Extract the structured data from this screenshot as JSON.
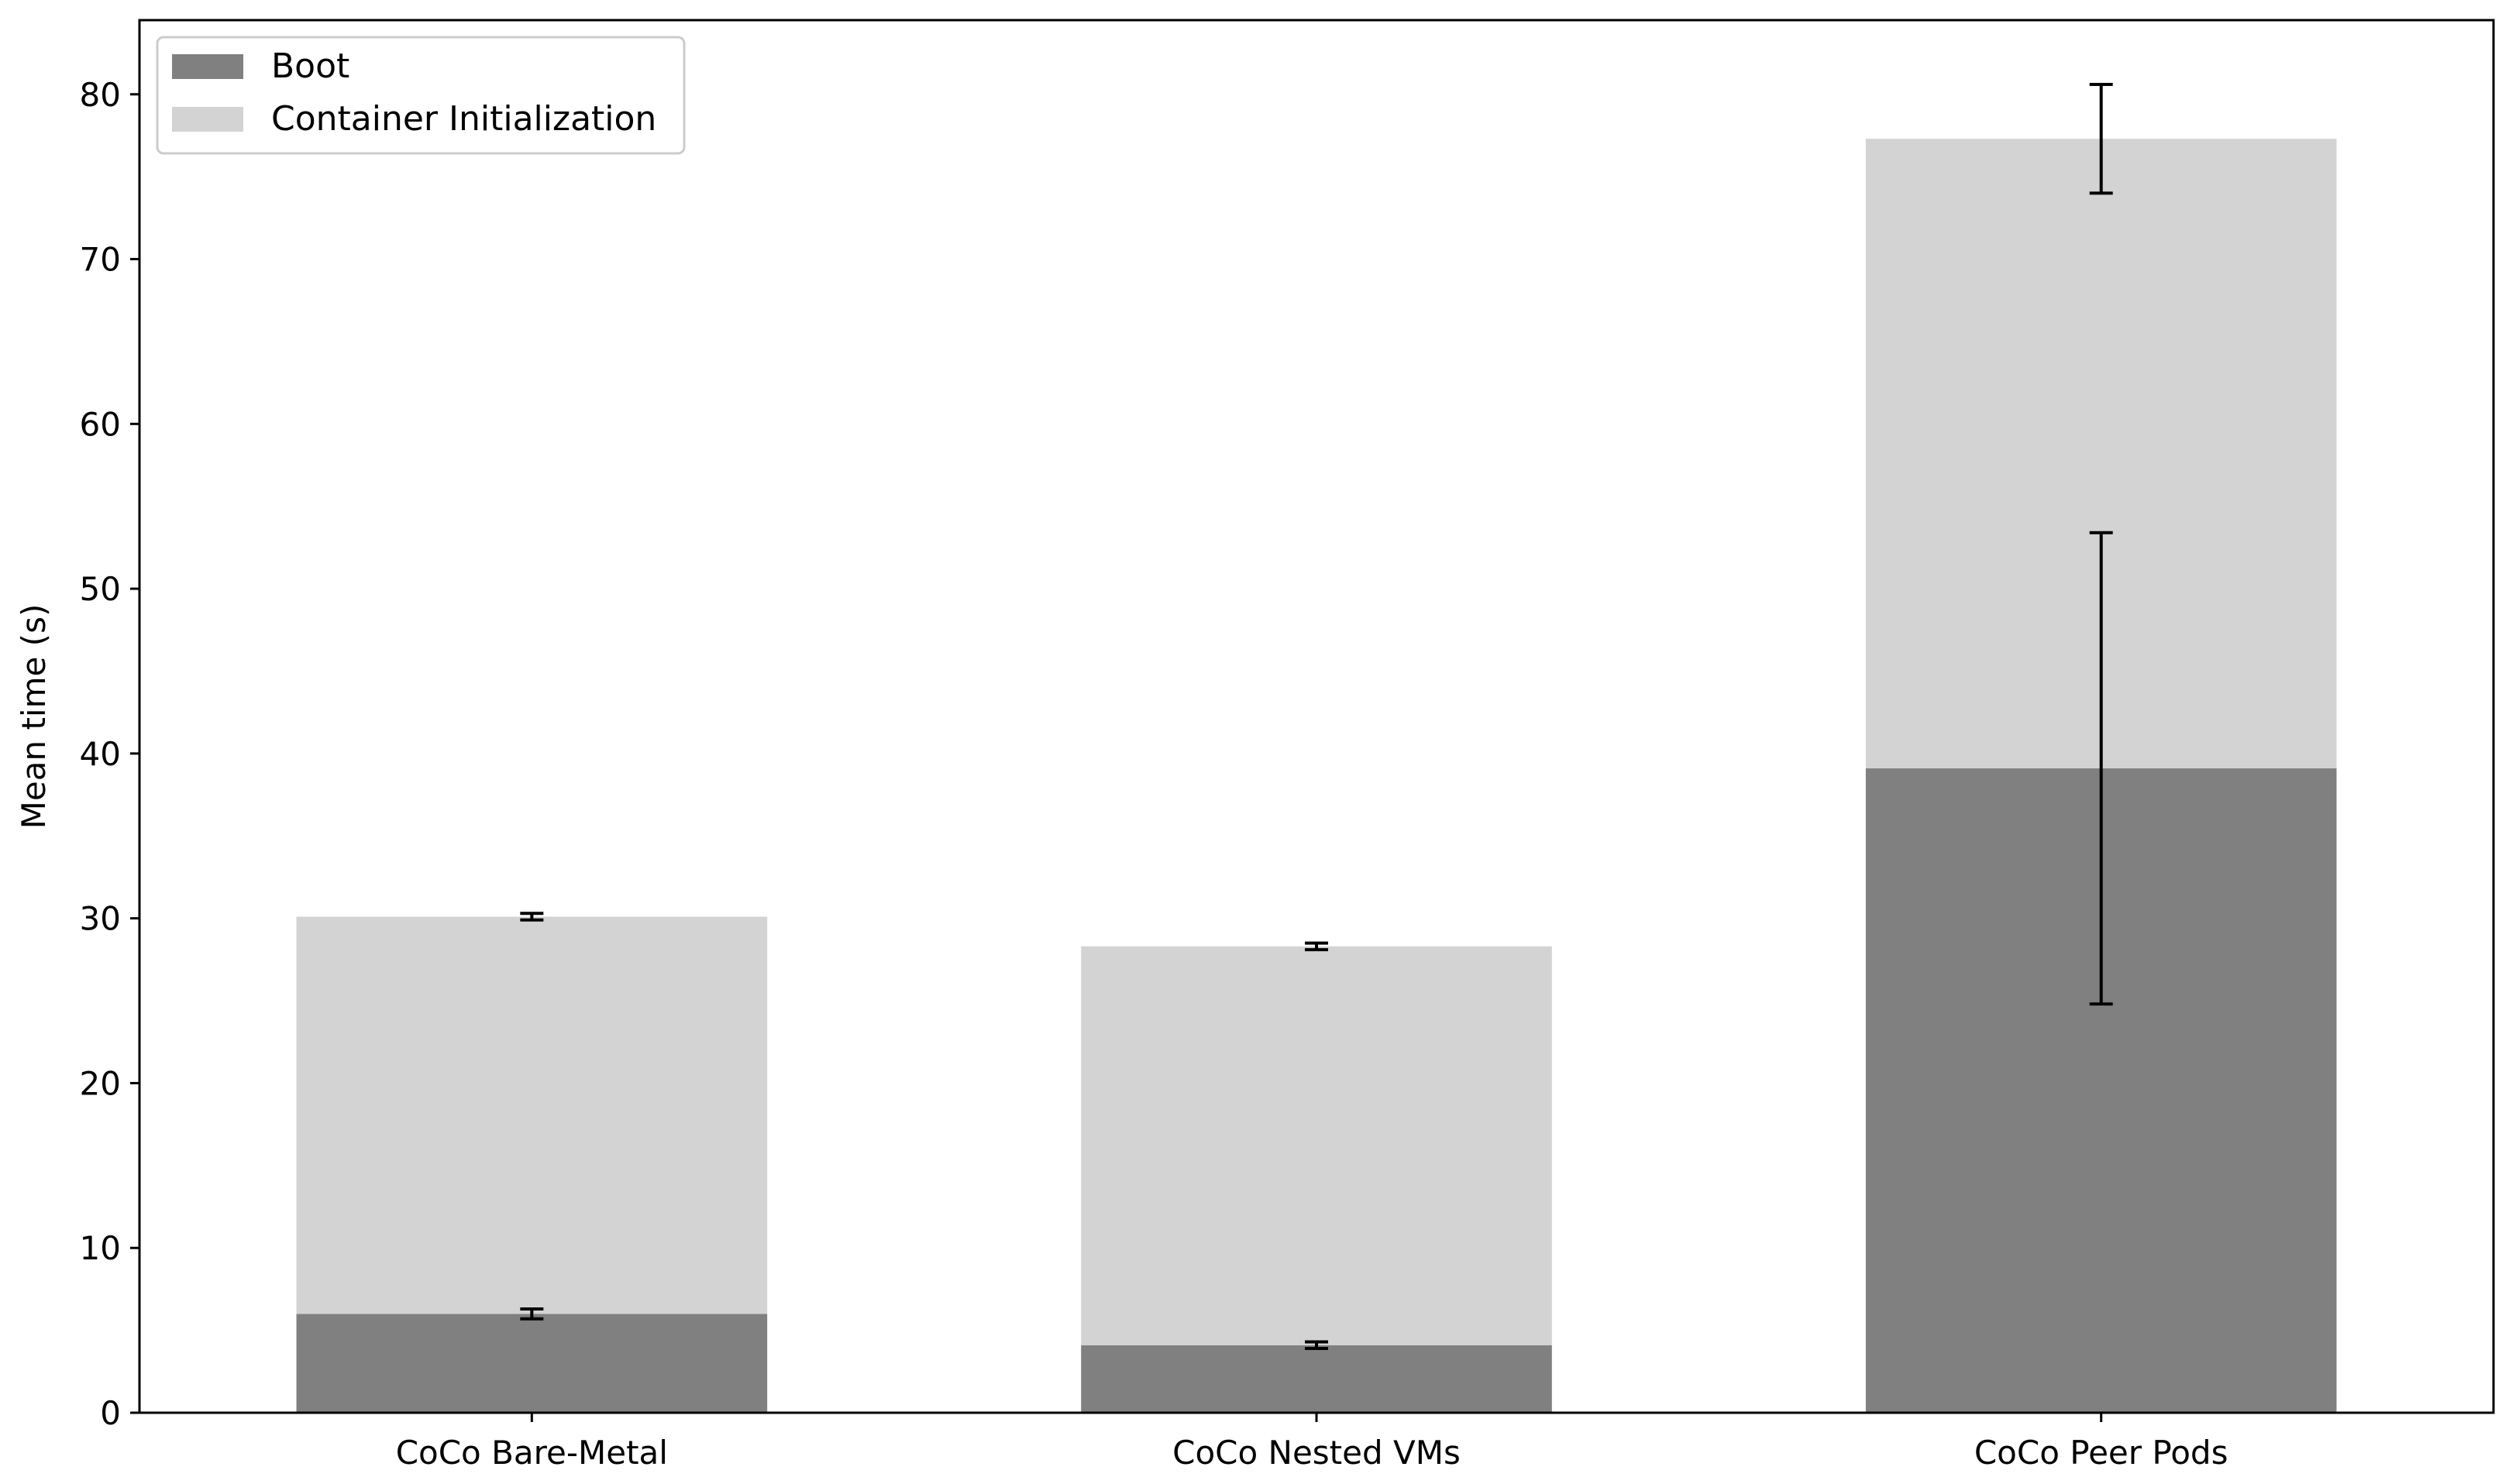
{
  "chart_data": {
    "type": "bar",
    "stacked": true,
    "title": "",
    "xlabel": "",
    "ylabel": "Mean time (s)",
    "ylim": [
      0,
      84.5
    ],
    "yticks": [
      0,
      10,
      20,
      30,
      40,
      50,
      60,
      70,
      80
    ],
    "categories": [
      "CoCo Bare-Metal",
      "CoCo Nested VMs",
      "CoCo Peer Pods"
    ],
    "series": [
      {
        "name": "Boot",
        "color": "#808080",
        "values": [
          6.0,
          4.1,
          39.1
        ],
        "errors": [
          0.3,
          0.2,
          14.3
        ]
      },
      {
        "name": "Container Initialization",
        "color": "#d3d3d3",
        "values": [
          24.1,
          24.2,
          38.2
        ],
        "errors": [
          0.2,
          0.2,
          3.3
        ]
      }
    ],
    "legend": {
      "position": "top-left"
    },
    "grid": false
  }
}
